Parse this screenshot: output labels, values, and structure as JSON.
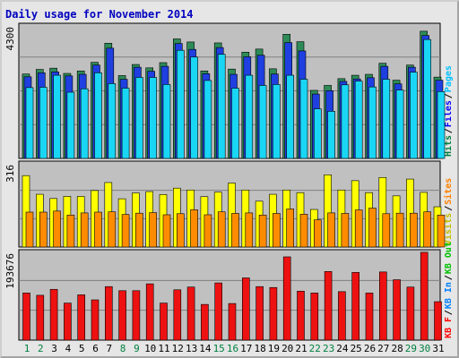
{
  "title": "Daily usage for November 2014",
  "chart_data": [
    {
      "type": "bar",
      "panel": "pages-files-hits",
      "y_max_label": "4300",
      "legend": [
        {
          "name": "Hits",
          "color": "#008040"
        },
        {
          "name": "Files",
          "color": "#0000ff"
        },
        {
          "name": "Pages",
          "color": "#00c0ff"
        }
      ],
      "legend_separator": "/",
      "ylim": [
        0,
        4300
      ],
      "categories": [
        "1",
        "2",
        "3",
        "4",
        "5",
        "6",
        "7",
        "8",
        "9",
        "10",
        "11",
        "12",
        "13",
        "14",
        "15",
        "16",
        "17",
        "18",
        "19",
        "20",
        "21",
        "22",
        "23",
        "24",
        "25",
        "26",
        "27",
        "28",
        "29",
        "30",
        "31"
      ],
      "series": [
        {
          "name": "Hits",
          "color": "#2e8b57",
          "values": [
            2740,
            2890,
            2930,
            2760,
            2840,
            3120,
            3740,
            2690,
            3050,
            2940,
            3110,
            3880,
            3780,
            2840,
            3750,
            2900,
            3450,
            3550,
            2910,
            4030,
            3790,
            2210,
            2370,
            2590,
            2700,
            2730,
            3090,
            2540,
            3030,
            4130,
            2640
          ]
        },
        {
          "name": "Files",
          "color": "#1f3fe0",
          "values": [
            2650,
            2780,
            2810,
            2680,
            2730,
            3030,
            3580,
            2570,
            2960,
            2830,
            2990,
            3730,
            3540,
            2750,
            3600,
            2730,
            3300,
            3350,
            2740,
            3760,
            3490,
            2090,
            2200,
            2500,
            2580,
            2620,
            2990,
            2420,
            2960,
            3990,
            2540
          ]
        },
        {
          "name": "Pages",
          "color": "#1ad6f5",
          "values": [
            2300,
            2310,
            2700,
            2150,
            2260,
            2780,
            2430,
            2280,
            2630,
            2630,
            2400,
            3510,
            3290,
            2530,
            3380,
            2280,
            2700,
            2370,
            2400,
            2700,
            2570,
            1610,
            1530,
            2390,
            2510,
            2320,
            2570,
            2220,
            2800,
            3860,
            2170
          ]
        }
      ]
    },
    {
      "type": "bar",
      "panel": "visits-sites",
      "y_max_label": "316",
      "legend": [
        {
          "name": "Visits",
          "color": "#c0c000"
        },
        {
          "name": "Sites",
          "color": "#ff8000"
        }
      ],
      "legend_separator": "/",
      "ylim": [
        0,
        316
      ],
      "categories": [
        "1",
        "2",
        "3",
        "4",
        "5",
        "6",
        "7",
        "8",
        "9",
        "10",
        "11",
        "12",
        "13",
        "14",
        "15",
        "16",
        "17",
        "18",
        "19",
        "20",
        "21",
        "22",
        "23",
        "24",
        "25",
        "26",
        "27",
        "28",
        "29",
        "30",
        "31"
      ],
      "series": [
        {
          "name": "Visits",
          "color": "#ffff00",
          "values": [
            268,
            198,
            182,
            190,
            190,
            212,
            242,
            181,
            203,
            208,
            197,
            221,
            214,
            189,
            206,
            240,
            214,
            172,
            198,
            214,
            204,
            141,
            271,
            214,
            249,
            204,
            261,
            192,
            255,
            205,
            151
          ]
        },
        {
          "name": "Sites",
          "color": "#ff8c00",
          "values": [
            131,
            131,
            135,
            120,
            128,
            131,
            132,
            122,
            127,
            129,
            121,
            125,
            140,
            121,
            132,
            126,
            128,
            120,
            126,
            143,
            123,
            102,
            128,
            126,
            139,
            146,
            125,
            127,
            127,
            132,
            120
          ]
        }
      ]
    },
    {
      "type": "bar",
      "panel": "kbf-kbin-kbout",
      "y_max_label": "193676",
      "legend": [
        {
          "name": "KB F",
          "color": "#ff0000"
        },
        {
          "name": "KB In",
          "color": "#0080ff"
        },
        {
          "name": "KB Out",
          "color": "#00c000"
        }
      ],
      "legend_separator": "/",
      "ylim": [
        0,
        193676
      ],
      "categories": [
        "1",
        "2",
        "3",
        "4",
        "5",
        "6",
        "7",
        "8",
        "9",
        "10",
        "11",
        "12",
        "13",
        "14",
        "15",
        "16",
        "17",
        "18",
        "19",
        "20",
        "21",
        "22",
        "23",
        "24",
        "25",
        "26",
        "27",
        "28",
        "29",
        "30",
        "31"
      ],
      "series": [
        {
          "name": "KB F",
          "color": "#ee1111",
          "values": [
            103000,
            98000,
            111000,
            81000,
            99000,
            88000,
            117000,
            108000,
            108000,
            123000,
            81000,
            110000,
            116000,
            78000,
            125000,
            80000,
            136000,
            117000,
            115000,
            182000,
            107000,
            103000,
            150000,
            106000,
            148000,
            103000,
            149000,
            132000,
            116000,
            192000,
            84000
          ]
        }
      ]
    }
  ],
  "x_labels": [
    {
      "text": "1",
      "color": "#008040"
    },
    {
      "text": "2",
      "color": "#008040"
    },
    {
      "text": "3",
      "color": "#000000"
    },
    {
      "text": "4",
      "color": "#000000"
    },
    {
      "text": "5",
      "color": "#000000"
    },
    {
      "text": "6",
      "color": "#000000"
    },
    {
      "text": "7",
      "color": "#000000"
    },
    {
      "text": "8",
      "color": "#008040"
    },
    {
      "text": "9",
      "color": "#008040"
    },
    {
      "text": "10",
      "color": "#000000"
    },
    {
      "text": "11",
      "color": "#000000"
    },
    {
      "text": "12",
      "color": "#000000"
    },
    {
      "text": "13",
      "color": "#000000"
    },
    {
      "text": "14",
      "color": "#000000"
    },
    {
      "text": "15",
      "color": "#008040"
    },
    {
      "text": "16",
      "color": "#008040"
    },
    {
      "text": "17",
      "color": "#000000"
    },
    {
      "text": "18",
      "color": "#000000"
    },
    {
      "text": "19",
      "color": "#000000"
    },
    {
      "text": "20",
      "color": "#000000"
    },
    {
      "text": "21",
      "color": "#000000"
    },
    {
      "text": "22",
      "color": "#008040"
    },
    {
      "text": "23",
      "color": "#008040"
    },
    {
      "text": "24",
      "color": "#000000"
    },
    {
      "text": "25",
      "color": "#000000"
    },
    {
      "text": "26",
      "color": "#000000"
    },
    {
      "text": "27",
      "color": "#000000"
    },
    {
      "text": "28",
      "color": "#000000"
    },
    {
      "text": "29",
      "color": "#008040"
    },
    {
      "text": "30",
      "color": "#008040"
    },
    {
      "text": "31",
      "color": "#000000"
    }
  ]
}
